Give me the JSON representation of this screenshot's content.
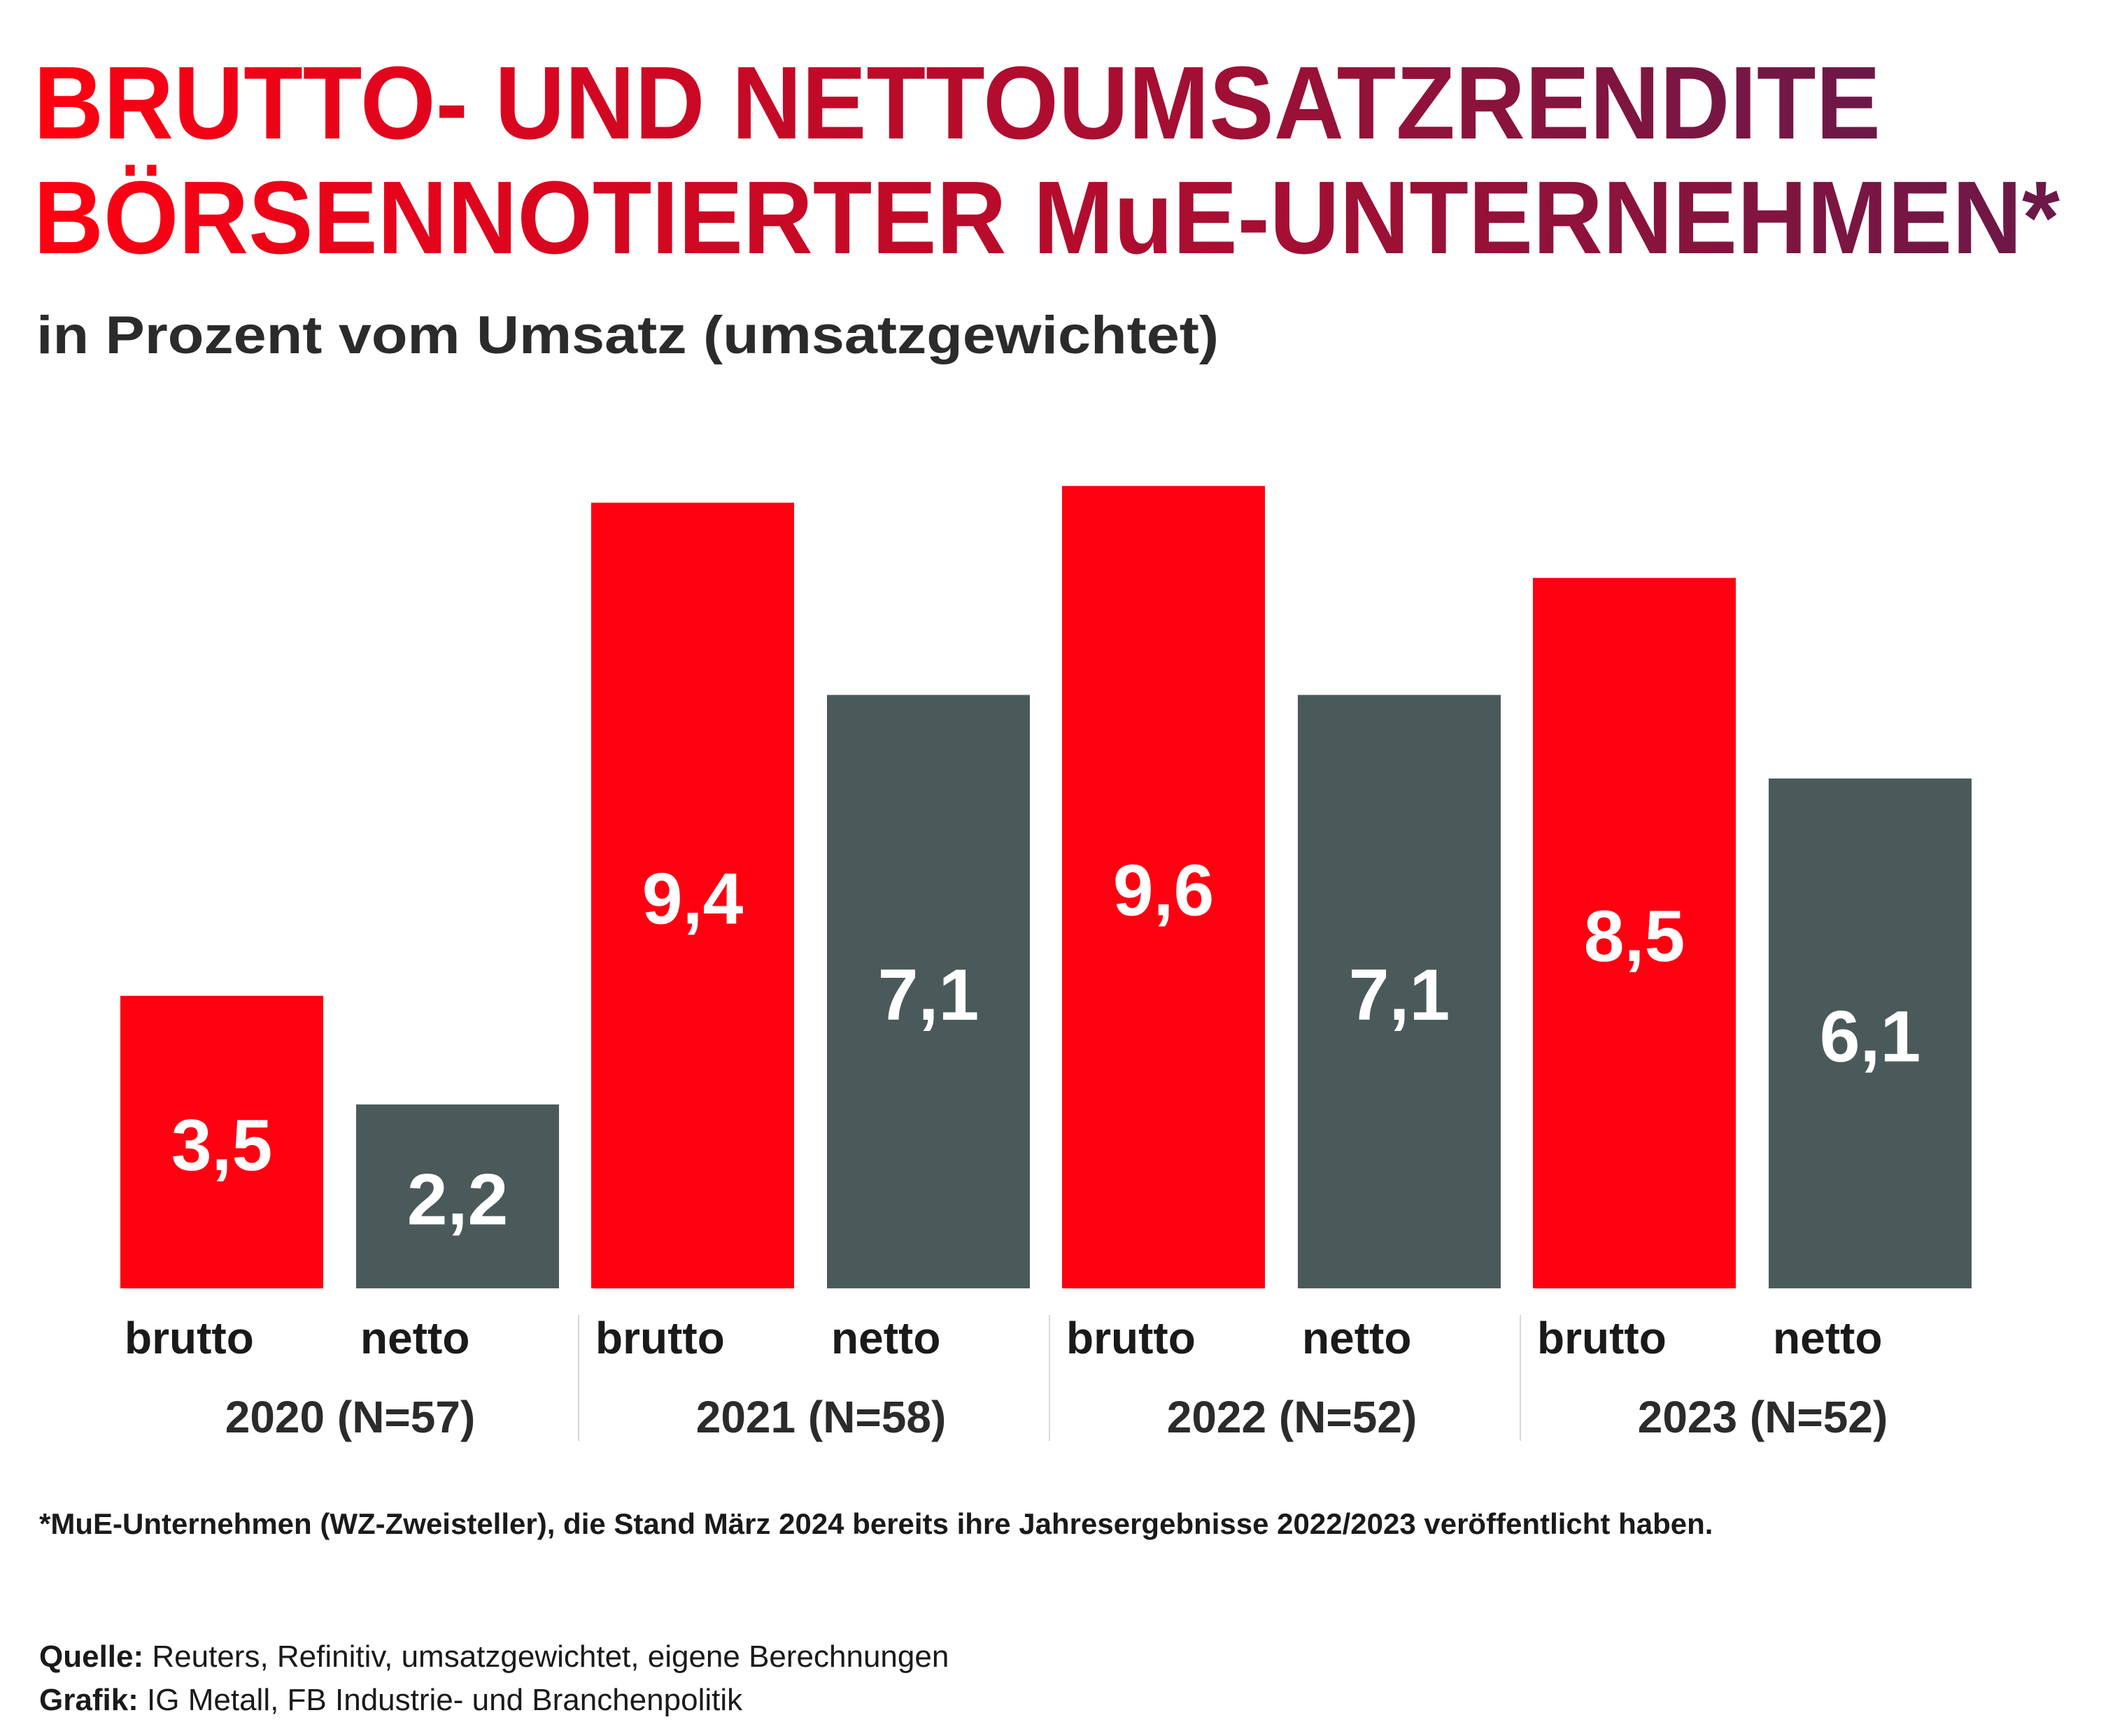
{
  "title_line1": "BRUTTO- UND NETTOUMSATZRENDITE",
  "title_line2": "BÖRSENNOTIERTER MuE-UNTERNEHMEN*",
  "subtitle": "in Prozent vom Umsatz (umsatzgewichtet)",
  "colors": {
    "title_start": "#ff0011",
    "title_end": "#6b1848",
    "brutto": "#ff0011",
    "netto": "#4a5a5a",
    "text": "#2b2b2b",
    "divider": "#d8d8d8"
  },
  "chart_data": {
    "type": "bar",
    "categories": [
      "2020 (N=57)",
      "2021 (N=58)",
      "2022 (N=52)",
      "2023 (N=52)"
    ],
    "series": [
      {
        "name": "brutto",
        "values": [
          3.5,
          9.4,
          9.6,
          8.5
        ],
        "labels": [
          "3,5",
          "9,4",
          "9,6",
          "8,5"
        ]
      },
      {
        "name": "netto",
        "values": [
          2.2,
          7.1,
          7.1,
          6.1
        ],
        "labels": [
          "2,2",
          "7,1",
          "7,1",
          "6,1"
        ]
      }
    ],
    "ylim": [
      0,
      10
    ],
    "grid": false,
    "legend": "none"
  },
  "footnote": "*MuE-Unternehmen (WZ-Zweisteller), die Stand März 2024 bereits ihre Jahresergebnisse 2022/2023 veröffentlicht haben.",
  "source": {
    "label": "Quelle:",
    "text": " Reuters, Refinitiv, umsatzgewichtet, eigene Berechnungen"
  },
  "credit": {
    "label": "Grafik:",
    "text": " IG Metall, FB Industrie- und Branchenpolitik"
  }
}
